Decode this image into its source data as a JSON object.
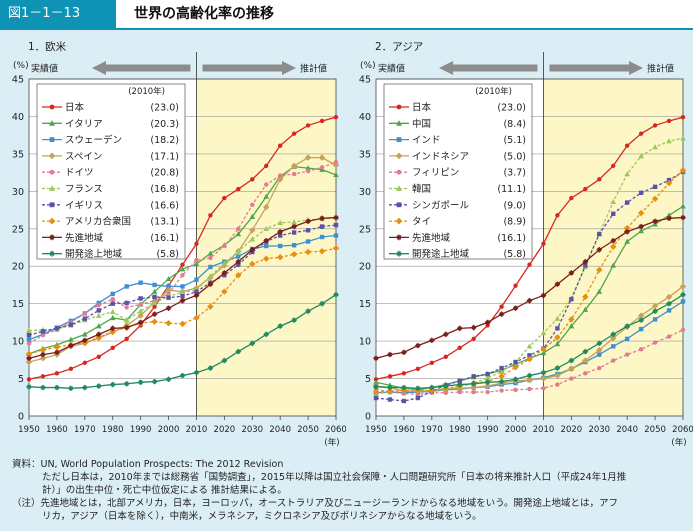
{
  "figure": {
    "number": "図1－1－13",
    "title": "世界の高齢化率の推移"
  },
  "notes": [
    "資料：UN, World Population Prospects: The 2012 Revision",
    "ただし日本は，2010年までは総務省「国勢調査」，2015年以降は国立社会保障・人口問題研究所「日本の将来推計人口（平成24年1月推",
    "計）」の出生中位・死亡中位仮定による 推計結果による。",
    "（注）先進地域とは，北部アメリカ，日本，ヨーロッパ，オーストラリア及びニュージーランドからなる地域をいう。開発途上地域とは，アフ",
    "リカ，アジア（日本を除く），中南米，メラネシア，ミクロネシア及びポリネシアからなる地域をいう。"
  ],
  "chart_data": [
    {
      "type": "line",
      "panel_title": "1．欧米",
      "ylabel": "(%)",
      "xunit": "(年)",
      "actual_label": "実績値",
      "projection_label": "推計値",
      "legend_header": "(2010年)",
      "x": [
        1950,
        1955,
        1960,
        1965,
        1970,
        1975,
        1980,
        1985,
        1990,
        1995,
        2000,
        2005,
        2010,
        2015,
        2020,
        2025,
        2030,
        2035,
        2040,
        2045,
        2050,
        2055,
        2060
      ],
      "xticks": [
        1950,
        1960,
        1970,
        1980,
        1990,
        2000,
        2010,
        2020,
        2030,
        2040,
        2050,
        2060
      ],
      "ylim": [
        0,
        45
      ],
      "yticks": [
        0,
        5,
        10,
        15,
        20,
        25,
        30,
        35,
        40,
        45
      ],
      "projection_start": 2010,
      "series": [
        {
          "name": "日本",
          "value_2010": "(23.0)",
          "color": "#d7281f",
          "marker": "circle",
          "dash": false,
          "values": [
            4.9,
            5.3,
            5.7,
            6.3,
            7.1,
            7.9,
            9.1,
            10.3,
            12.1,
            14.6,
            17.4,
            20.2,
            23.0,
            26.8,
            29.1,
            30.3,
            31.6,
            33.4,
            36.1,
            37.7,
            38.8,
            39.4,
            39.9
          ]
        },
        {
          "name": "イタリア",
          "value_2010": "(20.3)",
          "color": "#4ea64a",
          "marker": "triangle",
          "dash": false,
          "values": [
            8.3,
            9.0,
            9.5,
            10.2,
            10.9,
            12.0,
            13.1,
            12.8,
            14.9,
            16.6,
            18.3,
            19.6,
            20.3,
            21.7,
            22.8,
            24.3,
            26.6,
            29.3,
            32.0,
            33.3,
            33.1,
            32.9,
            32.2
          ]
        },
        {
          "name": "スウェーデン",
          "value_2010": "(18.2)",
          "color": "#3f8fd3",
          "marker": "square",
          "dash": false,
          "values": [
            10.2,
            10.9,
            11.8,
            12.7,
            13.7,
            15.1,
            16.3,
            17.3,
            17.8,
            17.5,
            17.3,
            17.3,
            18.2,
            19.9,
            20.6,
            21.3,
            22.3,
            22.7,
            22.7,
            22.8,
            23.3,
            23.9,
            24.1
          ]
        },
        {
          "name": "スペイン",
          "value_2010": "(17.1)",
          "color": "#c4a35a",
          "marker": "diamond",
          "dash": false,
          "values": [
            7.2,
            7.7,
            8.2,
            9.3,
            9.7,
            10.4,
            11.2,
            12.1,
            13.4,
            15.2,
            16.8,
            16.6,
            17.1,
            18.5,
            20.1,
            22.0,
            24.8,
            27.9,
            31.6,
            33.4,
            34.5,
            34.5,
            33.5
          ]
        },
        {
          "name": "ドイツ",
          "value_2010": "(20.8)",
          "color": "#e57a8f",
          "marker": "circle",
          "dash": true,
          "values": [
            9.7,
            10.8,
            11.5,
            12.5,
            13.7,
            14.8,
            15.6,
            14.5,
            14.9,
            15.4,
            16.3,
            18.8,
            20.8,
            21.1,
            22.7,
            25.0,
            28.2,
            30.9,
            32.1,
            32.3,
            32.7,
            33.2,
            33.9
          ]
        },
        {
          "name": "フランス",
          "value_2010": "(16.8)",
          "color": "#9cc85a",
          "marker": "triangle",
          "dash": true,
          "values": [
            11.4,
            11.5,
            11.6,
            12.1,
            12.8,
            13.4,
            13.9,
            12.8,
            14.0,
            15.1,
            16.0,
            16.5,
            16.8,
            18.7,
            20.4,
            22.0,
            23.6,
            25.0,
            25.8,
            25.9,
            26.2,
            26.3,
            26.5
          ]
        },
        {
          "name": "イギリス",
          "value_2010": "(16.6)",
          "color": "#5a53a8",
          "marker": "square",
          "dash": true,
          "values": [
            10.8,
            11.3,
            11.7,
            12.2,
            13.0,
            14.1,
            15.0,
            15.1,
            15.7,
            15.9,
            15.8,
            16.0,
            16.6,
            17.8,
            18.8,
            20.2,
            21.9,
            23.3,
            24.1,
            24.5,
            24.8,
            25.3,
            25.5
          ]
        },
        {
          "name": "アメリカ合衆国",
          "value_2010": "(13.1)",
          "color": "#e78f11",
          "marker": "diamond",
          "dash": true,
          "values": [
            8.3,
            8.8,
            9.2,
            9.5,
            9.8,
            10.5,
            11.3,
            11.8,
            12.4,
            12.6,
            12.4,
            12.3,
            13.1,
            14.6,
            16.6,
            18.8,
            20.3,
            21.0,
            21.2,
            21.6,
            21.9,
            22.0,
            22.4
          ]
        },
        {
          "name": "先進地域",
          "value_2010": "(16.1)",
          "color": "#7a1f1a",
          "marker": "star",
          "dash": false,
          "values": [
            7.7,
            8.2,
            8.5,
            9.4,
            10.1,
            10.9,
            11.7,
            11.8,
            12.5,
            13.6,
            14.4,
            15.4,
            16.1,
            17.6,
            19.1,
            20.6,
            22.2,
            23.4,
            24.6,
            25.3,
            26.0,
            26.4,
            26.5
          ]
        },
        {
          "name": "開発途上地域",
          "value_2010": "(5.8)",
          "color": "#1f8a5e",
          "marker": "star",
          "dash": false,
          "values": [
            3.9,
            3.8,
            3.8,
            3.7,
            3.8,
            4.0,
            4.2,
            4.3,
            4.5,
            4.6,
            4.9,
            5.4,
            5.8,
            6.4,
            7.4,
            8.6,
            9.7,
            10.9,
            12.0,
            12.8,
            14.0,
            15.0,
            16.2
          ]
        }
      ]
    },
    {
      "type": "line",
      "panel_title": "2．アジア",
      "ylabel": "(%)",
      "xunit": "(年)",
      "actual_label": "実績値",
      "projection_label": "推計値",
      "legend_header": "(2010年)",
      "x": [
        1950,
        1955,
        1960,
        1965,
        1970,
        1975,
        1980,
        1985,
        1990,
        1995,
        2000,
        2005,
        2010,
        2015,
        2020,
        2025,
        2030,
        2035,
        2040,
        2045,
        2050,
        2055,
        2060
      ],
      "xticks": [
        1950,
        1960,
        1970,
        1980,
        1990,
        2000,
        2010,
        2020,
        2030,
        2040,
        2050,
        2060
      ],
      "ylim": [
        0,
        45
      ],
      "yticks": [
        0,
        5,
        10,
        15,
        20,
        25,
        30,
        35,
        40,
        45
      ],
      "projection_start": 2010,
      "series": [
        {
          "name": "日本",
          "value_2010": "(23.0)",
          "color": "#d7281f",
          "marker": "circle",
          "dash": false,
          "values": [
            4.9,
            5.3,
            5.7,
            6.3,
            7.1,
            7.9,
            9.1,
            10.3,
            12.1,
            14.6,
            17.4,
            20.2,
            23.0,
            26.8,
            29.1,
            30.3,
            31.6,
            33.4,
            36.1,
            37.7,
            38.8,
            39.4,
            39.9
          ]
        },
        {
          "name": "中国",
          "value_2010": "(8.4)",
          "color": "#4ea64a",
          "marker": "triangle",
          "dash": false,
          "values": [
            4.5,
            4.1,
            3.7,
            3.5,
            3.8,
            4.2,
            4.7,
            5.2,
            5.6,
            6.1,
            6.9,
            7.7,
            8.4,
            9.6,
            12.0,
            14.2,
            16.6,
            20.1,
            23.3,
            24.7,
            25.6,
            26.8,
            28.0
          ]
        },
        {
          "name": "インド",
          "value_2010": "(5.1)",
          "color": "#3f8fd3",
          "marker": "square",
          "dash": false,
          "values": [
            3.1,
            3.2,
            3.1,
            3.2,
            3.3,
            3.5,
            3.6,
            3.8,
            3.9,
            4.2,
            4.4,
            4.8,
            5.1,
            5.6,
            6.3,
            7.2,
            8.2,
            9.3,
            10.3,
            11.6,
            12.9,
            14.1,
            15.3
          ]
        },
        {
          "name": "インドネシア",
          "value_2010": "(5.0)",
          "color": "#c4a35a",
          "marker": "diamond",
          "dash": false,
          "values": [
            4.0,
            3.8,
            3.3,
            3.3,
            3.4,
            3.6,
            3.7,
            3.8,
            4.0,
            4.4,
            4.7,
            4.8,
            5.0,
            5.4,
            6.3,
            7.4,
            8.8,
            10.4,
            11.9,
            13.4,
            14.7,
            15.9,
            17.3
          ]
        },
        {
          "name": "フィリピン",
          "value_2010": "(3.7)",
          "color": "#e57a8f",
          "marker": "circle",
          "dash": true,
          "values": [
            3.6,
            3.2,
            3.0,
            2.9,
            3.1,
            3.1,
            3.2,
            3.2,
            3.2,
            3.4,
            3.5,
            3.6,
            3.7,
            4.2,
            5.0,
            5.7,
            6.4,
            7.4,
            8.2,
            8.9,
            9.8,
            10.6,
            11.5
          ]
        },
        {
          "name": "韓国",
          "value_2010": "(11.1)",
          "color": "#9cc85a",
          "marker": "triangle",
          "dash": true,
          "values": [
            2.9,
            3.3,
            3.7,
            3.4,
            3.3,
            3.6,
            3.9,
            4.4,
            5.1,
            5.9,
            7.2,
            9.3,
            11.1,
            13.0,
            15.7,
            19.9,
            24.3,
            28.6,
            32.3,
            34.7,
            35.9,
            36.7,
            37.1
          ]
        },
        {
          "name": "シンガポール",
          "value_2010": "(9.0)",
          "color": "#5a53a8",
          "marker": "square",
          "dash": true,
          "values": [
            2.4,
            2.2,
            2.0,
            2.4,
            3.3,
            4.1,
            4.7,
            5.3,
            5.6,
            6.4,
            7.2,
            8.1,
            9.0,
            11.7,
            15.6,
            20.1,
            24.3,
            27.0,
            28.5,
            29.8,
            30.6,
            31.5,
            32.6
          ]
        },
        {
          "name": "タイ",
          "value_2010": "(8.9)",
          "color": "#e78f11",
          "marker": "diamond",
          "dash": true,
          "values": [
            3.2,
            3.3,
            3.4,
            3.4,
            3.4,
            3.7,
            4.0,
            4.4,
            4.6,
            5.3,
            6.5,
            7.6,
            8.9,
            10.5,
            12.9,
            15.9,
            19.5,
            22.6,
            25.1,
            27.1,
            29.0,
            31.1,
            32.8
          ]
        },
        {
          "name": "先進地域",
          "value_2010": "(16.1)",
          "color": "#7a1f1a",
          "marker": "star",
          "dash": false,
          "values": [
            7.7,
            8.2,
            8.5,
            9.4,
            10.1,
            10.9,
            11.7,
            11.8,
            12.5,
            13.6,
            14.4,
            15.4,
            16.1,
            17.6,
            19.1,
            20.6,
            22.2,
            23.4,
            24.6,
            25.3,
            26.0,
            26.4,
            26.5
          ]
        },
        {
          "name": "開発途上地域",
          "value_2010": "(5.8)",
          "color": "#1f8a5e",
          "marker": "star",
          "dash": false,
          "values": [
            3.9,
            3.8,
            3.8,
            3.7,
            3.8,
            4.0,
            4.2,
            4.3,
            4.5,
            4.6,
            4.9,
            5.4,
            5.8,
            6.4,
            7.4,
            8.6,
            9.7,
            10.9,
            12.0,
            12.8,
            14.0,
            15.0,
            16.2
          ]
        }
      ]
    }
  ]
}
